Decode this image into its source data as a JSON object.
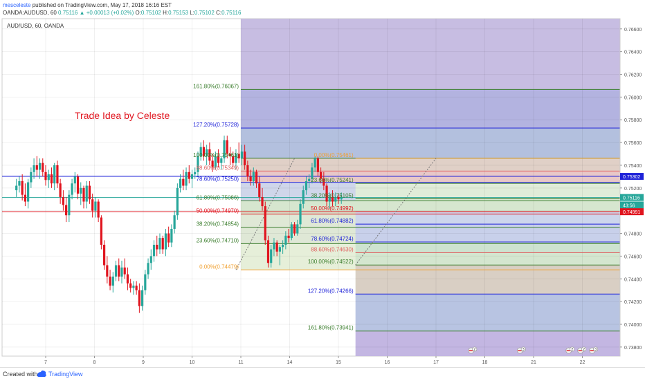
{
  "header": {
    "user": "mesceleste",
    "published": "published on TradingView.com, May 17, 2018 16:16 EST",
    "symbol_line": "OANDA:AUDUSD, 60",
    "last": "0.75116",
    "change": "+0.00013 (+0.02%)",
    "ohlc": {
      "o": "0.75102",
      "h": "0.75153",
      "l": "0.75102",
      "c": "0.75116"
    }
  },
  "chart_data": {
    "type": "candlestick",
    "title": "AUD/USD, 60, OANDA",
    "annotation": "Trade Idea by Celeste",
    "ylim": [
      0.7372,
      0.7669
    ],
    "y_ticks": [
      "0.76600",
      "0.76400",
      "0.76200",
      "0.76000",
      "0.75800",
      "0.75600",
      "0.75400",
      "0.75200",
      "0.75000",
      "0.74800",
      "0.74600",
      "0.74400",
      "0.74200",
      "0.74000",
      "0.73800"
    ],
    "x_ticks": [
      {
        "label": "7",
        "d": 7
      },
      {
        "label": "8",
        "d": 8
      },
      {
        "label": "9",
        "d": 9
      },
      {
        "label": "10",
        "d": 10
      },
      {
        "label": "11",
        "d": 11
      },
      {
        "label": "14",
        "d": 12
      },
      {
        "label": "15",
        "d": 13
      },
      {
        "label": "16",
        "d": 14
      },
      {
        "label": "17",
        "d": 15
      },
      {
        "label": "18",
        "d": 16
      },
      {
        "label": "21",
        "d": 17
      },
      {
        "label": "22",
        "d": 18
      }
    ],
    "price_labels": [
      {
        "text": "0.75302",
        "value": 0.75302,
        "color": "#1e22d8"
      },
      {
        "text": "0.75116",
        "value": 0.75116,
        "color": "#26a69a"
      },
      {
        "text": "43:56",
        "value": 0.7505,
        "color": "#26a69a"
      },
      {
        "text": "0.74991",
        "value": 0.74991,
        "color": "#e0141e"
      }
    ],
    "horizontal_lines": [
      {
        "value": 0.75302,
        "color": "#1e22d8"
      },
      {
        "value": 0.75116,
        "color": "#26a69a"
      },
      {
        "value": 0.74991,
        "color": "#e0141e"
      }
    ],
    "fib1": {
      "x_start": 11.0,
      "x_end": 18.8,
      "label_x": 11.0,
      "levels": [
        {
          "label": "161.80%(0.76067)",
          "value": 0.76067,
          "color": "#3a7d2c",
          "fill": "#b3b3e0"
        },
        {
          "label": "127.20%(0.75728)",
          "value": 0.75728,
          "color": "#1e22d8",
          "fill": "#b3c0de"
        },
        {
          "label": "100.00%(0.75461)",
          "value": 0.75461,
          "color": "#3a7d2c",
          "fill": "#e0d0c7"
        },
        {
          "label": "88.60%(0.75349)",
          "value": 0.75349,
          "color": "#e06060",
          "fill": "#e8c8c8"
        },
        {
          "label": "78.60%(0.75250)",
          "value": 0.7525,
          "color": "#1e22d8",
          "fill": "#cfd6ea"
        },
        {
          "label": "61.80%(0.75086)",
          "value": 0.75086,
          "color": "#3a7d2c",
          "fill": "#d6e6cf"
        },
        {
          "label": "50.00%(0.74970)",
          "value": 0.7497,
          "color": "#e0141e",
          "fill": "#dfe8d6"
        },
        {
          "label": "38.20%(0.74854)",
          "value": 0.74854,
          "color": "#3a7d2c",
          "fill": "#dfe8d6"
        },
        {
          "label": "23.60%(0.74710)",
          "value": 0.7471,
          "color": "#3a7d2c",
          "fill": "#e6efd9"
        },
        {
          "label": "0.00%(0.74479)",
          "value": 0.74479,
          "color": "#f0a030",
          "fill": "#eef3e3"
        }
      ]
    },
    "fib2": {
      "x_start": 13.35,
      "x_end": 18.8,
      "label_x": 13.35,
      "levels": [
        {
          "label": "0.00%(0.75461)",
          "value": 0.75461,
          "color": "#f0a030",
          "fill": null
        },
        {
          "label": "23.60%(0.75241)",
          "value": 0.75241,
          "color": "#3a7d2c",
          "fill": "#e0ecd9"
        },
        {
          "label": "38.20%(0.75105)",
          "value": 0.75105,
          "color": "#3a7d2c",
          "fill": "#d6e6cf"
        },
        {
          "label": "50.00%(0.74992)",
          "value": 0.74992,
          "color": "#e0141e",
          "fill": "#cdd6ec"
        },
        {
          "label": "61.80%(0.74882)",
          "value": 0.74882,
          "color": "#1e22d8",
          "fill": "#c8d0ea"
        },
        {
          "label": "78.60%(0.74724)",
          "value": 0.74724,
          "color": "#1e22d8",
          "fill": "#cde3d0"
        },
        {
          "label": "88.60%(0.74630)",
          "value": 0.7463,
          "color": "#e06060",
          "fill": "#d4e6cf"
        },
        {
          "label": "100.00%(0.74522)",
          "value": 0.74522,
          "color": "#3a7d2c",
          "fill": "#d9cfc4"
        },
        {
          "label": "127.20%(0.74266)",
          "value": 0.74266,
          "color": "#1e22d8",
          "fill": "#b8c4e2"
        },
        {
          "label": "161.80%(0.73941)",
          "value": 0.73941,
          "color": "#3a7d2c",
          "fill": "#c5b8e0"
        }
      ]
    },
    "trend_lines": [
      {
        "from": [
          10.9,
          0.74479
        ],
        "to": [
          12.1,
          0.75461
        ]
      },
      {
        "from": [
          13.35,
          0.74522
        ],
        "to": [
          15.0,
          0.75461
        ]
      }
    ],
    "candles": [
      {
        "d": 6.4,
        "o": 0.7518,
        "h": 0.7528,
        "l": 0.7512,
        "c": 0.7522
      },
      {
        "d": 6.46,
        "o": 0.7522,
        "h": 0.753,
        "l": 0.7516,
        "c": 0.7526
      },
      {
        "d": 6.52,
        "o": 0.7526,
        "h": 0.7532,
        "l": 0.7509,
        "c": 0.7514
      },
      {
        "d": 6.58,
        "o": 0.7514,
        "h": 0.7524,
        "l": 0.7504,
        "c": 0.7508
      },
      {
        "d": 6.64,
        "o": 0.7508,
        "h": 0.7528,
        "l": 0.7502,
        "c": 0.7525
      },
      {
        "d": 6.7,
        "o": 0.7525,
        "h": 0.7538,
        "l": 0.752,
        "c": 0.7534
      },
      {
        "d": 6.76,
        "o": 0.7534,
        "h": 0.7546,
        "l": 0.7528,
        "c": 0.754
      },
      {
        "d": 6.82,
        "o": 0.754,
        "h": 0.7548,
        "l": 0.753,
        "c": 0.7536
      },
      {
        "d": 6.88,
        "o": 0.7536,
        "h": 0.7546,
        "l": 0.7528,
        "c": 0.7542
      },
      {
        "d": 6.94,
        "o": 0.7542,
        "h": 0.7546,
        "l": 0.753,
        "c": 0.7534
      },
      {
        "d": 7.0,
        "o": 0.7534,
        "h": 0.754,
        "l": 0.7522,
        "c": 0.7527
      },
      {
        "d": 7.06,
        "o": 0.7527,
        "h": 0.7536,
        "l": 0.752,
        "c": 0.7532
      },
      {
        "d": 7.12,
        "o": 0.7532,
        "h": 0.7538,
        "l": 0.752,
        "c": 0.7524
      },
      {
        "d": 7.18,
        "o": 0.7524,
        "h": 0.7542,
        "l": 0.7518,
        "c": 0.754
      },
      {
        "d": 7.24,
        "o": 0.754,
        "h": 0.7544,
        "l": 0.752,
        "c": 0.7524
      },
      {
        "d": 7.3,
        "o": 0.7524,
        "h": 0.7528,
        "l": 0.7506,
        "c": 0.7512
      },
      {
        "d": 7.36,
        "o": 0.7512,
        "h": 0.7518,
        "l": 0.75,
        "c": 0.7505
      },
      {
        "d": 7.42,
        "o": 0.7505,
        "h": 0.7512,
        "l": 0.749,
        "c": 0.7496
      },
      {
        "d": 7.48,
        "o": 0.7496,
        "h": 0.7518,
        "l": 0.749,
        "c": 0.7514
      },
      {
        "d": 7.54,
        "o": 0.7514,
        "h": 0.7528,
        "l": 0.751,
        "c": 0.7524
      },
      {
        "d": 7.6,
        "o": 0.7524,
        "h": 0.7534,
        "l": 0.7516,
        "c": 0.753
      },
      {
        "d": 7.66,
        "o": 0.753,
        "h": 0.7532,
        "l": 0.751,
        "c": 0.7515
      },
      {
        "d": 7.72,
        "o": 0.7515,
        "h": 0.7525,
        "l": 0.7505,
        "c": 0.752
      },
      {
        "d": 7.78,
        "o": 0.752,
        "h": 0.7522,
        "l": 0.7502,
        "c": 0.7508
      },
      {
        "d": 7.84,
        "o": 0.7508,
        "h": 0.7526,
        "l": 0.7502,
        "c": 0.7522
      },
      {
        "d": 7.9,
        "o": 0.7522,
        "h": 0.7526,
        "l": 0.7506,
        "c": 0.751
      },
      {
        "d": 7.96,
        "o": 0.751,
        "h": 0.7515,
        "l": 0.7494,
        "c": 0.75
      },
      {
        "d": 8.02,
        "o": 0.75,
        "h": 0.7512,
        "l": 0.7494,
        "c": 0.7508
      },
      {
        "d": 8.08,
        "o": 0.7508,
        "h": 0.751,
        "l": 0.749,
        "c": 0.7494
      },
      {
        "d": 8.14,
        "o": 0.7494,
        "h": 0.7496,
        "l": 0.7466,
        "c": 0.747
      },
      {
        "d": 8.2,
        "o": 0.747,
        "h": 0.7474,
        "l": 0.7448,
        "c": 0.7452
      },
      {
        "d": 8.26,
        "o": 0.7452,
        "h": 0.746,
        "l": 0.7436,
        "c": 0.7442
      },
      {
        "d": 8.32,
        "o": 0.7442,
        "h": 0.7448,
        "l": 0.743,
        "c": 0.7434
      },
      {
        "d": 8.38,
        "o": 0.7434,
        "h": 0.7446,
        "l": 0.7428,
        "c": 0.7442
      },
      {
        "d": 8.44,
        "o": 0.7442,
        "h": 0.7456,
        "l": 0.7438,
        "c": 0.7452
      },
      {
        "d": 8.5,
        "o": 0.7452,
        "h": 0.7458,
        "l": 0.7438,
        "c": 0.7442
      },
      {
        "d": 8.56,
        "o": 0.7442,
        "h": 0.7456,
        "l": 0.7436,
        "c": 0.745
      },
      {
        "d": 8.62,
        "o": 0.745,
        "h": 0.7458,
        "l": 0.744,
        "c": 0.7444
      },
      {
        "d": 8.68,
        "o": 0.7444,
        "h": 0.745,
        "l": 0.743,
        "c": 0.7436
      },
      {
        "d": 8.74,
        "o": 0.7436,
        "h": 0.744,
        "l": 0.7428,
        "c": 0.7432
      },
      {
        "d": 8.8,
        "o": 0.7432,
        "h": 0.7438,
        "l": 0.7426,
        "c": 0.7434
      },
      {
        "d": 8.86,
        "o": 0.7434,
        "h": 0.7438,
        "l": 0.7426,
        "c": 0.743
      },
      {
        "d": 8.92,
        "o": 0.743,
        "h": 0.7436,
        "l": 0.741,
        "c": 0.7416
      },
      {
        "d": 8.98,
        "o": 0.7416,
        "h": 0.7434,
        "l": 0.7412,
        "c": 0.743
      },
      {
        "d": 9.04,
        "o": 0.743,
        "h": 0.7448,
        "l": 0.7426,
        "c": 0.7444
      },
      {
        "d": 9.1,
        "o": 0.7444,
        "h": 0.7458,
        "l": 0.744,
        "c": 0.7454
      },
      {
        "d": 9.16,
        "o": 0.7454,
        "h": 0.7466,
        "l": 0.7448,
        "c": 0.746
      },
      {
        "d": 9.22,
        "o": 0.746,
        "h": 0.7474,
        "l": 0.7455,
        "c": 0.747
      },
      {
        "d": 9.28,
        "o": 0.747,
        "h": 0.7478,
        "l": 0.746,
        "c": 0.7466
      },
      {
        "d": 9.34,
        "o": 0.7466,
        "h": 0.748,
        "l": 0.7462,
        "c": 0.7476
      },
      {
        "d": 9.4,
        "o": 0.7476,
        "h": 0.7478,
        "l": 0.7462,
        "c": 0.7466
      },
      {
        "d": 9.46,
        "o": 0.7466,
        "h": 0.7484,
        "l": 0.746,
        "c": 0.748
      },
      {
        "d": 9.52,
        "o": 0.748,
        "h": 0.7486,
        "l": 0.7468,
        "c": 0.7472
      },
      {
        "d": 9.58,
        "o": 0.7472,
        "h": 0.7488,
        "l": 0.7468,
        "c": 0.7484
      },
      {
        "d": 9.64,
        "o": 0.7484,
        "h": 0.75,
        "l": 0.748,
        "c": 0.7496
      },
      {
        "d": 9.7,
        "o": 0.7496,
        "h": 0.7524,
        "l": 0.7492,
        "c": 0.752
      },
      {
        "d": 9.76,
        "o": 0.752,
        "h": 0.7532,
        "l": 0.7516,
        "c": 0.7528
      },
      {
        "d": 9.82,
        "o": 0.7528,
        "h": 0.7536,
        "l": 0.7518,
        "c": 0.7522
      },
      {
        "d": 9.88,
        "o": 0.7522,
        "h": 0.7538,
        "l": 0.7518,
        "c": 0.7534
      },
      {
        "d": 9.94,
        "o": 0.7534,
        "h": 0.754,
        "l": 0.7524,
        "c": 0.7528
      },
      {
        "d": 10.0,
        "o": 0.7528,
        "h": 0.7536,
        "l": 0.752,
        "c": 0.7532
      },
      {
        "d": 10.06,
        "o": 0.7532,
        "h": 0.7538,
        "l": 0.7528,
        "c": 0.7534
      },
      {
        "d": 10.12,
        "o": 0.7534,
        "h": 0.7552,
        "l": 0.753,
        "c": 0.7548
      },
      {
        "d": 10.18,
        "o": 0.7548,
        "h": 0.756,
        "l": 0.7544,
        "c": 0.7556
      },
      {
        "d": 10.24,
        "o": 0.7556,
        "h": 0.7562,
        "l": 0.7544,
        "c": 0.7548
      },
      {
        "d": 10.3,
        "o": 0.7548,
        "h": 0.7558,
        "l": 0.754,
        "c": 0.7554
      },
      {
        "d": 10.36,
        "o": 0.7554,
        "h": 0.756,
        "l": 0.754,
        "c": 0.7544
      },
      {
        "d": 10.42,
        "o": 0.7544,
        "h": 0.755,
        "l": 0.7534,
        "c": 0.7538
      },
      {
        "d": 10.48,
        "o": 0.7538,
        "h": 0.7552,
        "l": 0.7536,
        "c": 0.7548
      },
      {
        "d": 10.54,
        "o": 0.7548,
        "h": 0.7554,
        "l": 0.7538,
        "c": 0.7542
      },
      {
        "d": 10.6,
        "o": 0.7542,
        "h": 0.7548,
        "l": 0.7536,
        "c": 0.7546
      },
      {
        "d": 10.66,
        "o": 0.7546,
        "h": 0.7566,
        "l": 0.7542,
        "c": 0.7562
      },
      {
        "d": 10.72,
        "o": 0.7562,
        "h": 0.7566,
        "l": 0.7546,
        "c": 0.755
      },
      {
        "d": 10.78,
        "o": 0.755,
        "h": 0.7556,
        "l": 0.754,
        "c": 0.7548
      },
      {
        "d": 10.84,
        "o": 0.7548,
        "h": 0.7552,
        "l": 0.7538,
        "c": 0.7542
      },
      {
        "d": 10.9,
        "o": 0.7542,
        "h": 0.7554,
        "l": 0.7536,
        "c": 0.755
      },
      {
        "d": 10.96,
        "o": 0.755,
        "h": 0.756,
        "l": 0.7542,
        "c": 0.7546
      },
      {
        "d": 11.02,
        "o": 0.7546,
        "h": 0.7558,
        "l": 0.754,
        "c": 0.7552
      },
      {
        "d": 11.08,
        "o": 0.7552,
        "h": 0.7558,
        "l": 0.7536,
        "c": 0.754
      },
      {
        "d": 11.14,
        "o": 0.754,
        "h": 0.7544,
        "l": 0.7526,
        "c": 0.753
      },
      {
        "d": 11.2,
        "o": 0.753,
        "h": 0.7536,
        "l": 0.7522,
        "c": 0.7526
      },
      {
        "d": 11.26,
        "o": 0.7526,
        "h": 0.7538,
        "l": 0.7522,
        "c": 0.7534
      },
      {
        "d": 11.32,
        "o": 0.7534,
        "h": 0.7536,
        "l": 0.752,
        "c": 0.7524
      },
      {
        "d": 11.38,
        "o": 0.7524,
        "h": 0.753,
        "l": 0.7508,
        "c": 0.7512
      },
      {
        "d": 11.44,
        "o": 0.7512,
        "h": 0.752,
        "l": 0.75,
        "c": 0.7504
      },
      {
        "d": 11.5,
        "o": 0.7504,
        "h": 0.7508,
        "l": 0.747,
        "c": 0.7474
      },
      {
        "d": 11.56,
        "o": 0.7474,
        "h": 0.7478,
        "l": 0.745,
        "c": 0.7454
      },
      {
        "d": 11.62,
        "o": 0.7454,
        "h": 0.747,
        "l": 0.745,
        "c": 0.7466
      },
      {
        "d": 11.68,
        "o": 0.7466,
        "h": 0.7476,
        "l": 0.746,
        "c": 0.7472
      },
      {
        "d": 11.74,
        "o": 0.7472,
        "h": 0.7474,
        "l": 0.746,
        "c": 0.7464
      },
      {
        "d": 11.8,
        "o": 0.7464,
        "h": 0.747,
        "l": 0.7452,
        "c": 0.7468
      },
      {
        "d": 11.86,
        "o": 0.7468,
        "h": 0.7474,
        "l": 0.7462,
        "c": 0.747
      },
      {
        "d": 11.92,
        "o": 0.747,
        "h": 0.7482,
        "l": 0.7466,
        "c": 0.7478
      },
      {
        "d": 11.98,
        "o": 0.7478,
        "h": 0.7484,
        "l": 0.7472,
        "c": 0.7476
      },
      {
        "d": 12.04,
        "o": 0.7476,
        "h": 0.749,
        "l": 0.7474,
        "c": 0.7488
      },
      {
        "d": 12.1,
        "o": 0.7488,
        "h": 0.749,
        "l": 0.7478,
        "c": 0.748
      },
      {
        "d": 12.16,
        "o": 0.748,
        "h": 0.7492,
        "l": 0.7478,
        "c": 0.7488
      },
      {
        "d": 12.22,
        "o": 0.7488,
        "h": 0.751,
        "l": 0.7484,
        "c": 0.7506
      },
      {
        "d": 12.28,
        "o": 0.7506,
        "h": 0.7522,
        "l": 0.7502,
        "c": 0.7518
      },
      {
        "d": 12.34,
        "o": 0.7518,
        "h": 0.753,
        "l": 0.7514,
        "c": 0.7526
      },
      {
        "d": 12.4,
        "o": 0.7526,
        "h": 0.7532,
        "l": 0.752,
        "c": 0.7528
      },
      {
        "d": 12.46,
        "o": 0.7528,
        "h": 0.7542,
        "l": 0.7524,
        "c": 0.7538
      },
      {
        "d": 12.52,
        "o": 0.7538,
        "h": 0.7548,
        "l": 0.7534,
        "c": 0.7546
      },
      {
        "d": 12.58,
        "o": 0.7546,
        "h": 0.7548,
        "l": 0.753,
        "c": 0.7534
      },
      {
        "d": 12.64,
        "o": 0.7534,
        "h": 0.7538,
        "l": 0.7524,
        "c": 0.7528
      },
      {
        "d": 12.7,
        "o": 0.7528,
        "h": 0.7534,
        "l": 0.7518,
        "c": 0.7522
      },
      {
        "d": 12.76,
        "o": 0.7522,
        "h": 0.7524,
        "l": 0.7504,
        "c": 0.7508
      },
      {
        "d": 12.82,
        "o": 0.7508,
        "h": 0.7516,
        "l": 0.7502,
        "c": 0.7512
      },
      {
        "d": 12.88,
        "o": 0.7512,
        "h": 0.7518,
        "l": 0.7504,
        "c": 0.7508
      },
      {
        "d": 12.94,
        "o": 0.7508,
        "h": 0.7516,
        "l": 0.7504,
        "c": 0.7512
      },
      {
        "d": 13.0,
        "o": 0.7512,
        "h": 0.7515,
        "l": 0.7506,
        "c": 0.751
      },
      {
        "d": 13.06,
        "o": 0.751,
        "h": 0.7516,
        "l": 0.7506,
        "c": 0.7512
      }
    ]
  },
  "economic_events": [
    {
      "d": 15.72,
      "count": "2"
    },
    {
      "d": 16.72,
      "count": "3"
    },
    {
      "d": 17.72,
      "count": "2"
    },
    {
      "d": 17.96,
      "count": "2"
    },
    {
      "d": 18.2,
      "count": "3"
    }
  ],
  "footer": {
    "created_with": "Created with",
    "brand": "TradingView"
  },
  "colors": {
    "up": "#26a69a",
    "down": "#e0141e",
    "annotation": "#e0141e",
    "accent": "#2962ff"
  }
}
